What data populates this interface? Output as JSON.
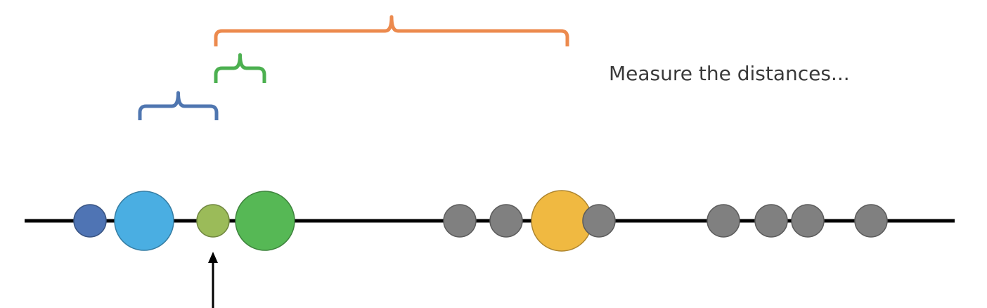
{
  "caption": "Measure the distances...",
  "colors": {
    "axis": "#000000",
    "query_point": "#9bbb59",
    "blue_bracket": "#4f76b0",
    "green_bracket": "#4cb050",
    "orange_bracket": "#ec8a4e",
    "gray_point": "#7f7f7f"
  },
  "points": [
    {
      "name": "point-dark-blue",
      "color": "#4f74b4",
      "size": "small"
    },
    {
      "name": "point-light-blue",
      "color": "#4aaee2",
      "size": "large"
    },
    {
      "name": "point-query-lime",
      "color": "#9bbb59",
      "size": "small",
      "is_query": true
    },
    {
      "name": "point-green",
      "color": "#56b855",
      "size": "large"
    },
    {
      "name": "point-gray-1",
      "color": "#808080",
      "size": "small"
    },
    {
      "name": "point-gray-2",
      "color": "#808080",
      "size": "small"
    },
    {
      "name": "point-orange",
      "color": "#f0b941",
      "size": "large"
    },
    {
      "name": "point-gray-3",
      "color": "#808080",
      "size": "small"
    },
    {
      "name": "point-gray-4",
      "color": "#808080",
      "size": "small"
    },
    {
      "name": "point-gray-5",
      "color": "#808080",
      "size": "small"
    },
    {
      "name": "point-gray-6",
      "color": "#808080",
      "size": "small"
    },
    {
      "name": "point-gray-7",
      "color": "#808080",
      "size": "small"
    }
  ],
  "brackets": [
    {
      "name": "distance-bracket-blue",
      "from": "point-query-lime",
      "to": "point-light-blue",
      "color": "#4f76b0"
    },
    {
      "name": "distance-bracket-green",
      "from": "point-query-lime",
      "to": "point-green",
      "color": "#4cb050"
    },
    {
      "name": "distance-bracket-orange",
      "from": "point-query-lime",
      "to": "point-orange",
      "color": "#ec8a4e"
    }
  ]
}
